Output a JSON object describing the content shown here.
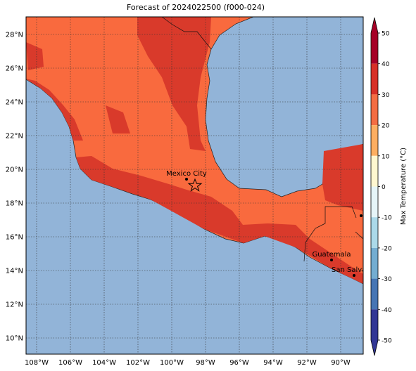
{
  "title": "Forecast of 2024022500 (f000-024)",
  "lon_ticks": [
    "108°W",
    "106°W",
    "104°W",
    "102°W",
    "100°W",
    "98°W",
    "96°W",
    "94°W",
    "92°W",
    "90°W"
  ],
  "lat_ticks": [
    "28°N",
    "26°N",
    "24°N",
    "22°N",
    "20°N",
    "18°N",
    "16°N",
    "14°N",
    "12°N",
    "10°N"
  ],
  "places": [
    {
      "label": "Mexico City"
    },
    {
      "label": "Guatemala"
    },
    {
      "label": "San Salvador"
    }
  ],
  "colorbar": {
    "label": "Max Temperature (°C)",
    "ticks": [
      50,
      40,
      30,
      20,
      10,
      0,
      -10,
      -20,
      -30,
      -40,
      -50
    ],
    "colors": [
      "#a50026",
      "#d73027",
      "#f46d43",
      "#fdae61",
      "#fff7d0",
      "#e6f5f8",
      "#abd9e9",
      "#74add1",
      "#4575b4",
      "#313695"
    ]
  }
}
